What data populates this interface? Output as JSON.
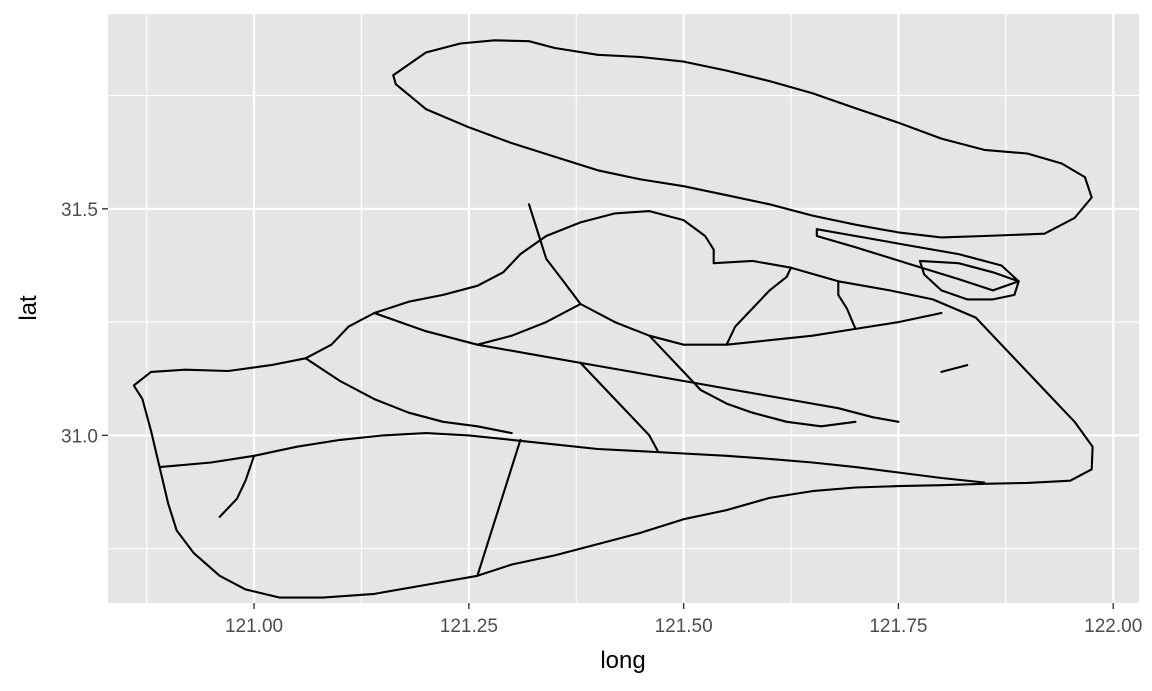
{
  "chart_data": {
    "type": "map",
    "xlabel": "long",
    "ylabel": "lat",
    "xlim": [
      120.83,
      122.03
    ],
    "ylim": [
      30.63,
      31.93
    ],
    "x_ticks": [
      {
        "value": 121.0,
        "label": "121.00"
      },
      {
        "value": 121.25,
        "label": "121.25"
      },
      {
        "value": 121.5,
        "label": "121.50"
      },
      {
        "value": 121.75,
        "label": "121.75"
      },
      {
        "value": 122.0,
        "label": "122.00"
      }
    ],
    "y_ticks": [
      {
        "value": 31.0,
        "label": "31.0"
      },
      {
        "value": 31.5,
        "label": "31.5"
      }
    ],
    "x_minor": [
      120.875,
      121.125,
      121.375,
      121.625,
      121.875
    ],
    "y_minor": [
      30.75,
      31.25,
      31.75
    ],
    "grid": true,
    "colors": {
      "panel": "#e5e5e5",
      "grid": "#ffffff",
      "outline": "#000000",
      "tick_text": "#4d4d4d",
      "axis_title": "#000000"
    },
    "polygons": [
      {
        "points": [
          [
            121.162,
            31.795
          ],
          [
            121.2,
            31.845
          ],
          [
            121.24,
            31.865
          ],
          [
            121.28,
            31.872
          ],
          [
            121.32,
            31.87
          ],
          [
            121.35,
            31.855
          ],
          [
            121.4,
            31.84
          ],
          [
            121.45,
            31.835
          ],
          [
            121.5,
            31.825
          ],
          [
            121.55,
            31.805
          ],
          [
            121.6,
            31.782
          ],
          [
            121.65,
            31.755
          ],
          [
            121.7,
            31.722
          ],
          [
            121.75,
            31.69
          ],
          [
            121.8,
            31.655
          ],
          [
            121.85,
            31.63
          ],
          [
            121.9,
            31.622
          ],
          [
            121.94,
            31.6
          ],
          [
            121.967,
            31.57
          ],
          [
            121.975,
            31.525
          ],
          [
            121.955,
            31.48
          ],
          [
            121.92,
            31.445
          ],
          [
            121.85,
            31.44
          ],
          [
            121.8,
            31.437
          ],
          [
            121.75,
            31.448
          ],
          [
            121.7,
            31.465
          ],
          [
            121.65,
            31.485
          ],
          [
            121.6,
            31.51
          ],
          [
            121.55,
            31.53
          ],
          [
            121.5,
            31.55
          ],
          [
            121.45,
            31.565
          ],
          [
            121.4,
            31.585
          ],
          [
            121.35,
            31.615
          ],
          [
            121.3,
            31.645
          ],
          [
            121.25,
            31.68
          ],
          [
            121.2,
            31.72
          ],
          [
            121.165,
            31.775
          ],
          [
            121.162,
            31.795
          ]
        ]
      },
      {
        "points": [
          [
            121.655,
            31.455
          ],
          [
            121.7,
            31.44
          ],
          [
            121.76,
            31.42
          ],
          [
            121.82,
            31.4
          ],
          [
            121.87,
            31.375
          ],
          [
            121.89,
            31.34
          ],
          [
            121.86,
            31.32
          ],
          [
            121.82,
            31.345
          ],
          [
            121.76,
            31.38
          ],
          [
            121.7,
            31.415
          ],
          [
            121.655,
            31.44
          ],
          [
            121.655,
            31.455
          ]
        ]
      },
      {
        "points": [
          [
            121.775,
            31.385
          ],
          [
            121.82,
            31.38
          ],
          [
            121.86,
            31.36
          ],
          [
            121.89,
            31.34
          ],
          [
            121.885,
            31.31
          ],
          [
            121.86,
            31.3
          ],
          [
            121.83,
            31.3
          ],
          [
            121.8,
            31.32
          ],
          [
            121.78,
            31.355
          ],
          [
            121.775,
            31.385
          ]
        ]
      },
      {
        "points": [
          [
            121.535,
            31.38
          ],
          [
            121.58,
            31.385
          ],
          [
            121.625,
            31.37
          ],
          [
            121.68,
            31.34
          ],
          [
            121.74,
            31.32
          ],
          [
            121.79,
            31.3
          ],
          [
            121.84,
            31.26
          ],
          [
            121.88,
            31.18
          ],
          [
            121.92,
            31.1
          ],
          [
            121.955,
            31.03
          ],
          [
            121.976,
            30.975
          ],
          [
            121.975,
            30.925
          ],
          [
            121.95,
            30.9
          ],
          [
            121.9,
            30.895
          ],
          [
            121.85,
            30.893
          ],
          [
            121.8,
            30.89
          ],
          [
            121.75,
            30.888
          ],
          [
            121.7,
            30.885
          ],
          [
            121.65,
            30.877
          ],
          [
            121.6,
            30.862
          ],
          [
            121.55,
            30.835
          ],
          [
            121.5,
            30.815
          ],
          [
            121.45,
            30.785
          ],
          [
            121.4,
            30.76
          ],
          [
            121.35,
            30.735
          ],
          [
            121.3,
            30.715
          ],
          [
            121.26,
            30.69
          ],
          [
            121.2,
            30.67
          ],
          [
            121.14,
            30.65
          ],
          [
            121.08,
            30.642
          ],
          [
            121.03,
            30.642
          ],
          [
            120.99,
            30.66
          ],
          [
            120.96,
            30.69
          ],
          [
            120.93,
            30.74
          ],
          [
            120.91,
            30.79
          ],
          [
            120.9,
            30.85
          ],
          [
            120.89,
            30.93
          ],
          [
            120.88,
            31.01
          ],
          [
            120.87,
            31.08
          ],
          [
            120.86,
            31.11
          ],
          [
            120.88,
            31.14
          ],
          [
            120.92,
            31.145
          ],
          [
            120.97,
            31.142
          ],
          [
            121.02,
            31.155
          ],
          [
            121.06,
            31.17
          ],
          [
            121.09,
            31.2
          ],
          [
            121.11,
            31.24
          ],
          [
            121.14,
            31.27
          ],
          [
            121.18,
            31.295
          ],
          [
            121.22,
            31.31
          ],
          [
            121.26,
            31.33
          ],
          [
            121.29,
            31.36
          ],
          [
            121.31,
            31.4
          ],
          [
            121.34,
            31.44
          ],
          [
            121.38,
            31.47
          ],
          [
            121.42,
            31.49
          ],
          [
            121.46,
            31.495
          ],
          [
            121.5,
            31.475
          ],
          [
            121.525,
            31.44
          ],
          [
            121.535,
            31.41
          ],
          [
            121.535,
            31.38
          ]
        ]
      },
      {
        "points": [
          [
            121.32,
            31.51
          ],
          [
            121.33,
            31.45
          ],
          [
            121.34,
            31.39
          ],
          [
            121.36,
            31.34
          ],
          [
            121.38,
            31.29
          ],
          [
            121.42,
            31.25
          ],
          [
            121.46,
            31.22
          ],
          [
            121.5,
            31.2
          ],
          [
            121.55,
            31.2
          ],
          [
            121.6,
            31.21
          ],
          [
            121.65,
            31.22
          ],
          [
            121.7,
            31.235
          ],
          [
            121.75,
            31.25
          ],
          [
            121.8,
            31.27
          ]
        ]
      },
      {
        "points": [
          [
            121.14,
            31.27
          ],
          [
            121.2,
            31.23
          ],
          [
            121.26,
            31.2
          ],
          [
            121.32,
            31.18
          ],
          [
            121.38,
            31.16
          ],
          [
            121.44,
            31.14
          ],
          [
            121.5,
            31.12
          ],
          [
            121.56,
            31.1
          ],
          [
            121.62,
            31.08
          ],
          [
            121.68,
            31.06
          ],
          [
            121.72,
            31.04
          ],
          [
            121.75,
            31.03
          ]
        ]
      },
      {
        "points": [
          [
            120.89,
            30.93
          ],
          [
            120.95,
            30.94
          ],
          [
            121.0,
            30.955
          ],
          [
            121.05,
            30.975
          ],
          [
            121.1,
            30.99
          ],
          [
            121.15,
            31.0
          ],
          [
            121.2,
            31.005
          ],
          [
            121.25,
            31.0
          ],
          [
            121.3,
            30.99
          ],
          [
            121.35,
            30.98
          ],
          [
            121.4,
            30.97
          ],
          [
            121.45,
            30.965
          ],
          [
            121.5,
            30.96
          ],
          [
            121.55,
            30.955
          ],
          [
            121.6,
            30.948
          ],
          [
            121.65,
            30.94
          ],
          [
            121.7,
            30.93
          ],
          [
            121.75,
            30.918
          ],
          [
            121.8,
            30.906
          ],
          [
            121.85,
            30.896
          ]
        ]
      },
      {
        "points": [
          [
            121.06,
            31.17
          ],
          [
            121.1,
            31.12
          ],
          [
            121.14,
            31.08
          ],
          [
            121.18,
            31.05
          ],
          [
            121.22,
            31.03
          ],
          [
            121.26,
            31.02
          ],
          [
            121.3,
            31.005
          ]
        ]
      },
      {
        "points": [
          [
            121.26,
            30.69
          ],
          [
            121.27,
            30.75
          ],
          [
            121.28,
            30.81
          ],
          [
            121.29,
            30.87
          ],
          [
            121.3,
            30.93
          ],
          [
            121.31,
            30.99
          ]
        ]
      },
      {
        "points": [
          [
            121.38,
            31.29
          ],
          [
            121.34,
            31.25
          ],
          [
            121.3,
            31.22
          ],
          [
            121.26,
            31.2
          ]
        ]
      },
      {
        "points": [
          [
            121.46,
            31.22
          ],
          [
            121.48,
            31.18
          ],
          [
            121.5,
            31.14
          ],
          [
            121.52,
            31.1
          ],
          [
            121.55,
            31.07
          ],
          [
            121.58,
            31.05
          ],
          [
            121.62,
            31.03
          ],
          [
            121.66,
            31.02
          ],
          [
            121.7,
            31.03
          ]
        ]
      },
      {
        "points": [
          [
            121.55,
            31.2
          ],
          [
            121.56,
            31.24
          ],
          [
            121.58,
            31.28
          ],
          [
            121.6,
            31.32
          ],
          [
            121.62,
            31.35
          ],
          [
            121.625,
            31.37
          ]
        ]
      },
      {
        "points": [
          [
            121.7,
            31.235
          ],
          [
            121.69,
            31.28
          ],
          [
            121.68,
            31.31
          ],
          [
            121.68,
            31.34
          ]
        ]
      },
      {
        "points": [
          [
            121.8,
            31.14
          ],
          [
            121.83,
            31.155
          ]
        ]
      },
      {
        "points": [
          [
            121.38,
            31.16
          ],
          [
            121.4,
            31.12
          ],
          [
            121.42,
            31.08
          ],
          [
            121.44,
            31.04
          ],
          [
            121.46,
            31.0
          ],
          [
            121.47,
            30.965
          ]
        ]
      },
      {
        "points": [
          [
            121.0,
            30.955
          ],
          [
            120.99,
            30.9
          ],
          [
            120.98,
            30.86
          ],
          [
            120.96,
            30.82
          ]
        ]
      }
    ]
  }
}
